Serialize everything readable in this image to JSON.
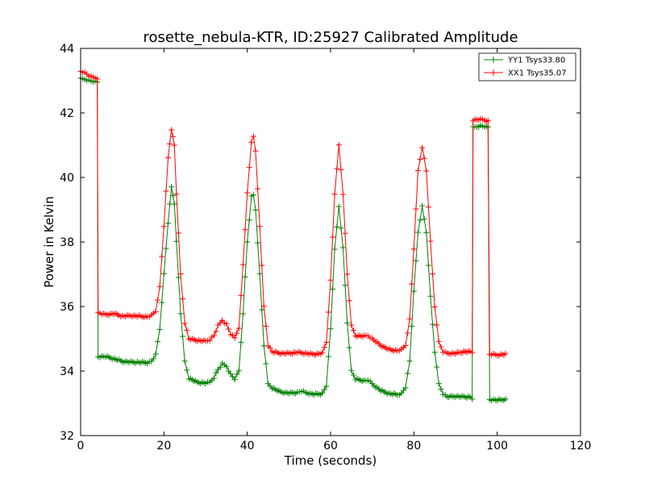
{
  "chart_data": {
    "type": "line",
    "title": "rosette_nebula-KTR, ID:25927 Calibrated Amplitude",
    "xlabel": "Time (seconds)",
    "ylabel": "Power in Kelvin",
    "xlim": [
      0,
      120
    ],
    "ylim": [
      32,
      44
    ],
    "xticks": [
      0,
      20,
      40,
      60,
      80,
      100,
      120
    ],
    "yticks": [
      32,
      34,
      36,
      38,
      40,
      42,
      44
    ],
    "xtick_labels": [
      "0",
      "20",
      "40",
      "60",
      "80",
      "100",
      "120"
    ],
    "ytick_labels": [
      "32",
      "34",
      "36",
      "38",
      "40",
      "42",
      "44"
    ],
    "grid": false,
    "legend_position": "top-right",
    "marker": "+",
    "series": [
      {
        "name": "YY1 Tsys33.80",
        "color": "#008000",
        "points": [
          [
            0,
            43.05
          ],
          [
            1,
            43.05
          ],
          [
            2,
            43.0
          ],
          [
            3,
            42.98
          ],
          [
            4,
            42.95
          ],
          [
            4.2,
            34.45
          ],
          [
            6,
            34.45
          ],
          [
            8,
            34.38
          ],
          [
            10,
            34.3
          ],
          [
            12,
            34.28
          ],
          [
            14,
            34.27
          ],
          [
            16,
            34.26
          ],
          [
            17,
            34.3
          ],
          [
            18,
            34.5
          ],
          [
            19,
            35.3
          ],
          [
            20,
            37.0
          ],
          [
            21,
            38.6
          ],
          [
            21.8,
            39.7
          ],
          [
            22.5,
            39.2
          ],
          [
            23,
            38.0
          ],
          [
            24,
            35.8
          ],
          [
            25,
            34.3
          ],
          [
            26,
            33.78
          ],
          [
            28,
            33.65
          ],
          [
            30,
            33.63
          ],
          [
            31,
            33.65
          ],
          [
            32,
            33.8
          ],
          [
            33,
            34.05
          ],
          [
            34,
            34.22
          ],
          [
            35,
            34.15
          ],
          [
            36,
            33.9
          ],
          [
            37,
            33.75
          ],
          [
            38,
            34.0
          ],
          [
            39,
            35.8
          ],
          [
            40,
            38.0
          ],
          [
            41,
            39.4
          ],
          [
            41.5,
            39.45
          ],
          [
            42,
            39.0
          ],
          [
            43,
            37.0
          ],
          [
            44,
            34.8
          ],
          [
            45,
            33.6
          ],
          [
            46,
            33.48
          ],
          [
            48,
            33.35
          ],
          [
            50,
            33.32
          ],
          [
            52,
            33.33
          ],
          [
            53,
            33.38
          ],
          [
            54,
            33.33
          ],
          [
            56,
            33.28
          ],
          [
            58,
            33.3
          ],
          [
            59,
            33.55
          ],
          [
            60,
            35.3
          ],
          [
            61,
            37.8
          ],
          [
            62,
            39.1
          ],
          [
            63,
            37.8
          ],
          [
            64,
            35.5
          ],
          [
            65,
            34.0
          ],
          [
            66,
            33.75
          ],
          [
            68,
            33.7
          ],
          [
            69,
            33.72
          ],
          [
            70,
            33.6
          ],
          [
            72,
            33.4
          ],
          [
            74,
            33.3
          ],
          [
            76,
            33.27
          ],
          [
            77,
            33.3
          ],
          [
            78,
            33.5
          ],
          [
            79,
            34.3
          ],
          [
            80,
            36.5
          ],
          [
            81,
            38.3
          ],
          [
            82,
            39.1
          ],
          [
            83,
            38.3
          ],
          [
            84,
            36.3
          ],
          [
            85,
            34.6
          ],
          [
            86,
            33.6
          ],
          [
            87,
            33.3
          ],
          [
            88,
            33.2
          ],
          [
            90,
            33.22
          ],
          [
            92,
            33.2
          ],
          [
            93.5,
            33.2
          ],
          [
            94,
            33.15
          ],
          [
            94.2,
            41.55
          ],
          [
            96,
            41.6
          ],
          [
            97,
            41.58
          ],
          [
            97.8,
            41.55
          ],
          [
            98.2,
            33.12
          ],
          [
            100,
            33.1
          ],
          [
            102,
            33.12
          ]
        ]
      },
      {
        "name": "XX1 Tsys35.07",
        "color": "#ff0000",
        "points": [
          [
            0,
            43.3
          ],
          [
            1,
            43.25
          ],
          [
            2,
            43.15
          ],
          [
            3,
            43.1
          ],
          [
            4,
            43.08
          ],
          [
            4.2,
            35.8
          ],
          [
            6,
            35.75
          ],
          [
            8,
            35.78
          ],
          [
            10,
            35.7
          ],
          [
            12,
            35.72
          ],
          [
            14,
            35.7
          ],
          [
            16,
            35.68
          ],
          [
            17,
            35.72
          ],
          [
            18,
            35.85
          ],
          [
            19,
            36.6
          ],
          [
            20,
            38.5
          ],
          [
            21,
            40.6
          ],
          [
            21.8,
            41.5
          ],
          [
            22.5,
            41.0
          ],
          [
            23,
            39.5
          ],
          [
            24,
            37.0
          ],
          [
            25,
            35.5
          ],
          [
            26,
            35.0
          ],
          [
            28,
            34.95
          ],
          [
            30,
            34.93
          ],
          [
            31,
            34.97
          ],
          [
            32,
            35.1
          ],
          [
            33,
            35.4
          ],
          [
            34,
            35.58
          ],
          [
            35,
            35.45
          ],
          [
            36,
            35.15
          ],
          [
            37,
            35.02
          ],
          [
            38,
            35.35
          ],
          [
            39,
            37.3
          ],
          [
            40,
            39.5
          ],
          [
            41,
            41.1
          ],
          [
            41.5,
            41.3
          ],
          [
            42,
            40.8
          ],
          [
            43,
            38.5
          ],
          [
            44,
            36.0
          ],
          [
            45,
            34.8
          ],
          [
            46,
            34.6
          ],
          [
            48,
            34.55
          ],
          [
            50,
            34.55
          ],
          [
            52,
            34.58
          ],
          [
            54,
            34.55
          ],
          [
            56,
            34.52
          ],
          [
            58,
            34.55
          ],
          [
            59,
            34.9
          ],
          [
            60,
            36.8
          ],
          [
            61,
            39.5
          ],
          [
            62,
            41.0
          ],
          [
            63,
            39.5
          ],
          [
            64,
            37.0
          ],
          [
            65,
            35.4
          ],
          [
            66,
            35.1
          ],
          [
            68,
            35.08
          ],
          [
            69,
            35.1
          ],
          [
            70,
            35.0
          ],
          [
            72,
            34.8
          ],
          [
            74,
            34.67
          ],
          [
            76,
            34.63
          ],
          [
            77,
            34.66
          ],
          [
            78,
            34.8
          ],
          [
            79,
            35.6
          ],
          [
            80,
            37.8
          ],
          [
            81,
            40.2
          ],
          [
            82,
            40.95
          ],
          [
            83,
            40.2
          ],
          [
            84,
            38.0
          ],
          [
            85,
            36.0
          ],
          [
            86,
            34.9
          ],
          [
            87,
            34.6
          ],
          [
            88,
            34.55
          ],
          [
            90,
            34.55
          ],
          [
            92,
            34.6
          ],
          [
            93.5,
            34.6
          ],
          [
            94,
            34.58
          ],
          [
            94.2,
            41.78
          ],
          [
            96,
            41.8
          ],
          [
            97,
            41.78
          ],
          [
            97.8,
            41.75
          ],
          [
            98.2,
            34.52
          ],
          [
            100,
            34.5
          ],
          [
            102,
            34.52
          ]
        ]
      }
    ]
  }
}
